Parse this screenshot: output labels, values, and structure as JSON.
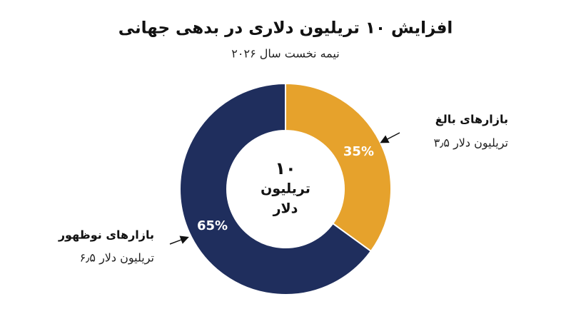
{
  "chart_data": {
    "type": "pie",
    "donut": true,
    "title": "افزایش ۱۰ تریلیون دلاری در بدهی جهانی",
    "subtitle": "نیمه نخست سال ۲۰۲۶",
    "center_label": [
      "۱۰",
      "تریلیون",
      "دلار"
    ],
    "categories": [
      "بازارهای بالغ",
      "بازارهای نوظهور"
    ],
    "values": [
      35,
      65
    ],
    "value_labels": [
      "35%",
      "65%"
    ],
    "annotations": [
      "۳٫۵ تریلیون دلار",
      "۶٫۵ تریلیون دلار"
    ],
    "colors": [
      "#e6a22c",
      "#1f2e5d"
    ]
  }
}
